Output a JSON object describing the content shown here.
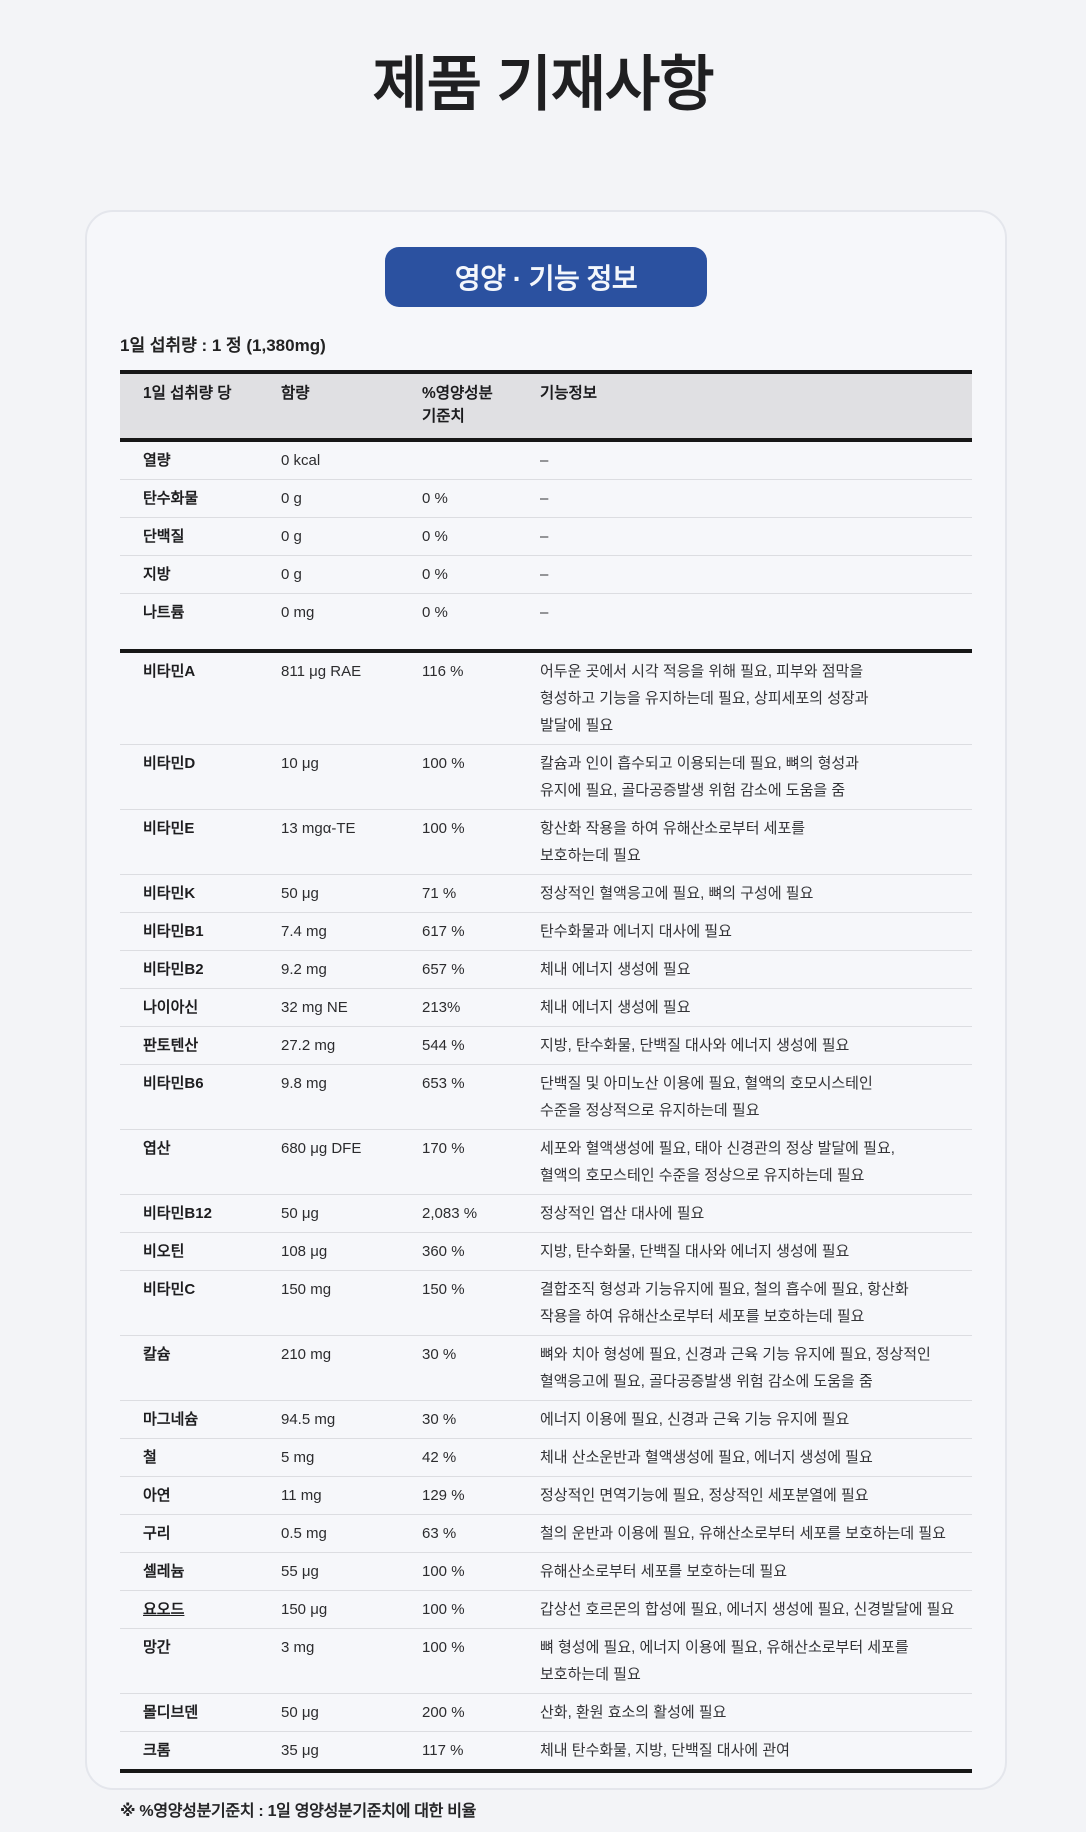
{
  "page": {
    "title": "제품 기재사항"
  },
  "card": {
    "badge_label": "영양 · 기능 정보",
    "serving_line": "1일 섭취량 : 1 정 (1,380mg)",
    "footnote": "※ %영양성분기준치 : 1일 영양성분기준치에 대한 비율"
  },
  "colors": {
    "badge_bg": "#2b51a0",
    "badge_text": "#f4f7fc",
    "header_bg": "#e0e0e3",
    "heavy_rule": "#171717",
    "divider": "#dcdde1",
    "page_bg": "#f3f4f7",
    "card_bg": "#f6f7fa",
    "card_border": "#e4e6ec"
  },
  "table": {
    "col1_header": "1일 섭취량 당",
    "col2_header": "함량",
    "col3_header_line1": "%영양성분",
    "col3_header_line2": "기준치",
    "col4_header": "기능정보",
    "macro_rows": [
      {
        "name": "열량",
        "amount": "0 kcal",
        "pct": "",
        "info": "–"
      },
      {
        "name": "탄수화물",
        "amount": "0 g",
        "pct": "0 %",
        "info": "–"
      },
      {
        "name": "단백질",
        "amount": "0 g",
        "pct": "0 %",
        "info": "–"
      },
      {
        "name": "지방",
        "amount": "0 g",
        "pct": "0 %",
        "info": "–"
      },
      {
        "name": "나트륨",
        "amount": "0 mg",
        "pct": "0 %",
        "info": "–"
      }
    ],
    "nutrient_rows": [
      {
        "name": "비타민A",
        "amount": "811 μg RAE",
        "pct": "116 %",
        "info": "어두운 곳에서 시각 적응을 위해 필요, 피부와 점막을\n형성하고 기능을 유지하는데 필요, 상피세포의 성장과\n발달에 필요"
      },
      {
        "name": "비타민D",
        "amount": "10 μg",
        "pct": "100 %",
        "info": "칼슘과 인이 흡수되고 이용되는데 필요, 뼈의 형성과\n유지에 필요, 골다공증발생 위험 감소에 도움을 줌"
      },
      {
        "name": "비타민E",
        "amount": "13 mgα-TE",
        "pct": "100 %",
        "info": "항산화 작용을 하여 유해산소로부터 세포를\n보호하는데 필요"
      },
      {
        "name": "비타민K",
        "amount": "50 μg",
        "pct": "71 %",
        "info": "정상적인 혈액응고에 필요, 뼈의 구성에 필요"
      },
      {
        "name": "비타민B1",
        "amount": "7.4 mg",
        "pct": "617 %",
        "info": "탄수화물과 에너지 대사에 필요"
      },
      {
        "name": "비타민B2",
        "amount": "9.2 mg",
        "pct": "657 %",
        "info": "체내 에너지 생성에 필요"
      },
      {
        "name": "나이아신",
        "amount": "32 mg NE",
        "pct": "213%",
        "info": "체내 에너지 생성에 필요"
      },
      {
        "name": "판토텐산",
        "amount": "27.2 mg",
        "pct": "544 %",
        "info": "지방, 탄수화물, 단백질 대사와 에너지 생성에 필요"
      },
      {
        "name": "비타민B6",
        "amount": "9.8 mg",
        "pct": "653 %",
        "info": "단백질 및 아미노산 이용에 필요, 혈액의 호모시스테인\n수준을 정상적으로 유지하는데 필요"
      },
      {
        "name": "엽산",
        "amount": "680 μg DFE",
        "pct": "170 %",
        "info": "세포와 혈액생성에 필요, 태아 신경관의 정상 발달에 필요,\n혈액의 호모스테인 수준을 정상으로 유지하는데 필요"
      },
      {
        "name": "비타민B12",
        "amount": "50 μg",
        "pct": "2,083 %",
        "info": "정상적인 엽산 대사에 필요"
      },
      {
        "name": "비오틴",
        "amount": "108 μg",
        "pct": "360 %",
        "info": "지방, 탄수화물, 단백질 대사와 에너지 생성에 필요"
      },
      {
        "name": "비타민C",
        "amount": "150 mg",
        "pct": "150 %",
        "info": "결합조직 형성과 기능유지에 필요, 철의 흡수에 필요, 항산화\n작용을 하여 유해산소로부터 세포를 보호하는데 필요"
      },
      {
        "name": "칼슘",
        "amount": "210 mg",
        "pct": "30 %",
        "info": "뼈와 치아 형성에 필요, 신경과 근육 기능 유지에 필요, 정상적인\n혈액응고에 필요, 골다공증발생 위험 감소에 도움을 줌"
      },
      {
        "name": "마그네슘",
        "amount": "94.5 mg",
        "pct": "30 %",
        "info": "에너지 이용에 필요, 신경과 근육 기능 유지에 필요"
      },
      {
        "name": "철",
        "amount": "5 mg",
        "pct": "42 %",
        "info": "체내 산소운반과 혈액생성에 필요, 에너지 생성에 필요"
      },
      {
        "name": "아연",
        "amount": "11 mg",
        "pct": "129 %",
        "info": "정상적인 면역기능에 필요, 정상적인 세포분열에 필요"
      },
      {
        "name": "구리",
        "amount": "0.5 mg",
        "pct": "63 %",
        "info": "철의 운반과 이용에 필요, 유해산소로부터 세포를 보호하는데 필요"
      },
      {
        "name": "셀레늄",
        "amount": "55 μg",
        "pct": "100 %",
        "info": "유해산소로부터 세포를 보호하는데 필요"
      },
      {
        "name": "요오드",
        "amount": "150 μg",
        "pct": "100 %",
        "info": "갑상선 호르몬의 합성에 필요, 에너지 생성에 필요, 신경발달에 필요",
        "underline": true
      },
      {
        "name": "망간",
        "amount": "3 mg",
        "pct": "100 %",
        "info": "뼈 형성에 필요, 에너지 이용에 필요, 유해산소로부터 세포를\n보호하는데 필요"
      },
      {
        "name": "몰디브덴",
        "amount": "50 μg",
        "pct": "200 %",
        "info": "산화, 환원 효소의 활성에 필요"
      },
      {
        "name": "크롬",
        "amount": "35 μg",
        "pct": "117 %",
        "info": "체내 탄수화물, 지방, 단백질 대사에 관여"
      }
    ]
  }
}
